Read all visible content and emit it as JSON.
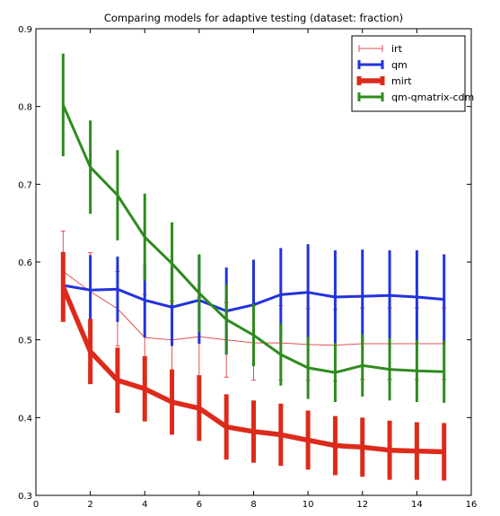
{
  "chart_data": {
    "type": "line",
    "title": "Comparing models for adaptive testing (dataset: fraction)",
    "xlabel": "",
    "ylabel": "",
    "xlim": [
      0,
      16
    ],
    "ylim": [
      0.3,
      0.9
    ],
    "xticks": [
      0,
      2,
      4,
      6,
      8,
      10,
      12,
      14,
      16
    ],
    "yticks": [
      0.3,
      0.4,
      0.5,
      0.6,
      0.7,
      0.8,
      0.9
    ],
    "grid": false,
    "legend_position": "top-right",
    "x": [
      1,
      2,
      3,
      4,
      5,
      6,
      7,
      8,
      9,
      10,
      11,
      12,
      13,
      14,
      15
    ],
    "series": [
      {
        "name": "irt",
        "color": "#e05050",
        "style": "thin",
        "values": [
          0.588,
          0.562,
          0.54,
          0.503,
          0.5,
          0.504,
          0.5,
          0.496,
          0.496,
          0.494,
          0.493,
          0.495,
          0.495,
          0.495,
          0.495
        ],
        "errors": [
          0.052,
          0.05,
          0.048,
          0.055,
          0.05,
          0.05,
          0.048,
          0.048,
          0.048,
          0.046,
          0.046,
          0.046,
          0.046,
          0.046,
          0.046
        ]
      },
      {
        "name": "qm",
        "color": "#2233dd",
        "style": "medium",
        "values": [
          0.57,
          0.564,
          0.565,
          0.551,
          0.542,
          0.551,
          0.537,
          0.545,
          0.558,
          0.561,
          0.555,
          0.556,
          0.557,
          0.555,
          0.552
        ],
        "errors": [
          0.043,
          0.045,
          0.042,
          0.048,
          0.05,
          0.056,
          0.056,
          0.058,
          0.06,
          0.062,
          0.06,
          0.06,
          0.058,
          0.06,
          0.058
        ]
      },
      {
        "name": "mirt",
        "color": "#dd2a1a",
        "style": "thick",
        "values": [
          0.568,
          0.485,
          0.448,
          0.437,
          0.42,
          0.412,
          0.388,
          0.382,
          0.378,
          0.371,
          0.364,
          0.362,
          0.358,
          0.357,
          0.356
        ],
        "errors": [
          0.045,
          0.042,
          0.042,
          0.042,
          0.042,
          0.042,
          0.042,
          0.04,
          0.04,
          0.038,
          0.038,
          0.038,
          0.038,
          0.037,
          0.037
        ]
      },
      {
        "name": "qm-qmatrix-cdm",
        "color": "#2e8b1e",
        "style": "medium",
        "values": [
          0.802,
          0.722,
          0.686,
          0.632,
          0.598,
          0.56,
          0.526,
          0.506,
          0.481,
          0.464,
          0.458,
          0.467,
          0.462,
          0.46,
          0.459
        ],
        "errors": [
          0.066,
          0.06,
          0.058,
          0.056,
          0.053,
          0.05,
          0.045,
          0.04,
          0.04,
          0.04,
          0.038,
          0.04,
          0.04,
          0.04,
          0.04
        ]
      }
    ]
  }
}
